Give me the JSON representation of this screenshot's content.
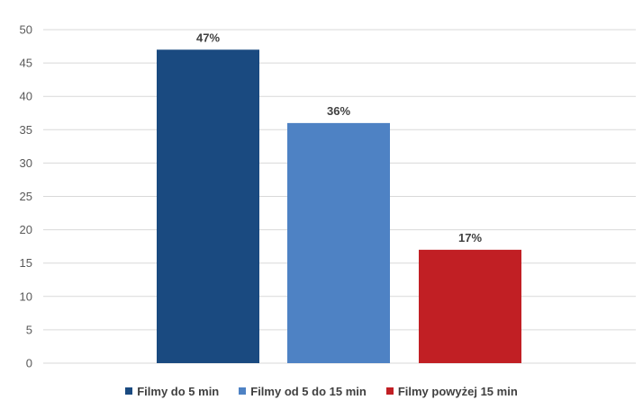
{
  "chart_data": {
    "type": "bar",
    "title": "",
    "xlabel": "",
    "ylabel": "",
    "ylim": [
      0,
      50
    ],
    "yticks": [
      "0",
      "5",
      "10",
      "15",
      "20",
      "25",
      "30",
      "35",
      "40",
      "45",
      "50"
    ],
    "grid": true,
    "legend_position": "bottom",
    "series": [
      {
        "name": "Filmy do 5 min",
        "value": 47,
        "label": "47%",
        "color": "#1a4a80"
      },
      {
        "name": "Filmy od 5 do 15 min",
        "value": 36,
        "label": "36%",
        "color": "#4e82c4"
      },
      {
        "name": "Filmy powyżej 15 min",
        "value": 17,
        "label": "17%",
        "color": "#c11f24"
      }
    ]
  }
}
